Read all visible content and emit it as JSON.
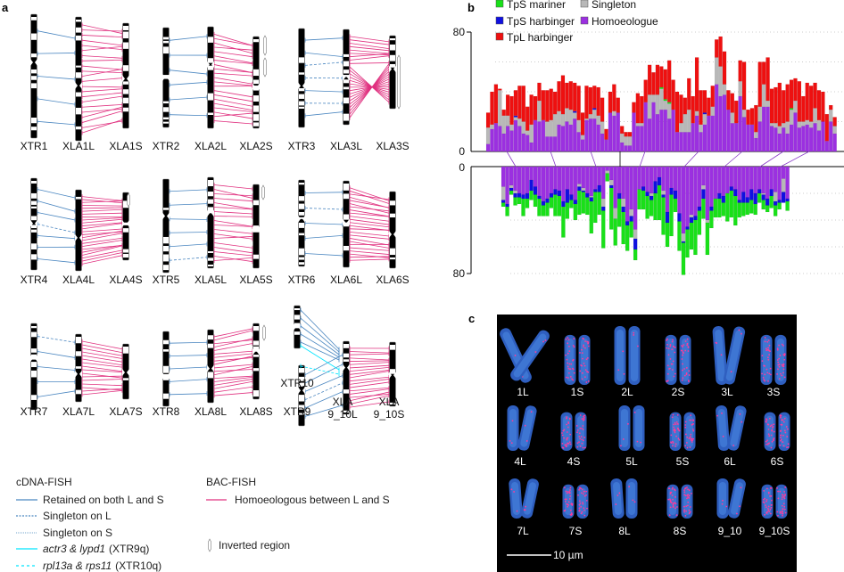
{
  "panel_a": {
    "label": "a",
    "rows": [
      [
        [
          "XTR1",
          "XLA1L",
          "XLA1S"
        ],
        [
          "XTR2",
          "XLA2L",
          "XLA2S"
        ],
        [
          "XTR3",
          "XLA3L",
          "XLA3S"
        ]
      ],
      [
        [
          "XTR4",
          "XLA4L",
          "XLA4S"
        ],
        [
          "XTR5",
          "XLA5L",
          "XLA5S"
        ],
        [
          "XTR6",
          "XLA6L",
          "XLA6S"
        ]
      ],
      [
        [
          "XTR7",
          "XLA7L",
          "XLA7S"
        ],
        [
          "XTR8",
          "XLA8L",
          "XLA8S"
        ],
        [
          "XTR9",
          "XLA 9_10L",
          "XLA 9_10S"
        ]
      ]
    ],
    "extra_label": "XTR10",
    "xla910l": [
      "XLA",
      "9_10L"
    ],
    "xla910s": [
      "XLA",
      "9_10S"
    ],
    "colors": {
      "retained": "#4a86c0",
      "homoeologous": "#e0307f",
      "xtr9q": "#00e5ff"
    },
    "legend": {
      "cdna_title": "cDNA-FISH",
      "retained": "Retained on both L and S",
      "singleton_l": "Singleton on L",
      "singleton_s": "Singleton on S",
      "xtr9q_genes": "actr3 & lypd1",
      "xtr9q_tag": "(XTR9q)",
      "xtr10q_genes": "rpl13a & rps11",
      "xtr10q_tag": "(XTR10q)",
      "bac_title": "BAC-FISH",
      "homoeologous": "Homoeologous between L and S",
      "inverted": "Inverted region"
    }
  },
  "chart_data": {
    "label": "b",
    "type": "bar",
    "stacked": true,
    "legend": [
      {
        "name": "TpS mariner",
        "color": "#19e019"
      },
      {
        "name": "Singleton",
        "color": "#b8b8b8"
      },
      {
        "name": "TpS harbinger",
        "color": "#1010e0"
      },
      {
        "name": "Homoeologue",
        "color": "#9b30e0"
      },
      {
        "name": "TpL harbinger",
        "color": "#ee1010"
      }
    ],
    "legend_placement": "top-left",
    "grid": true,
    "stack_order": [
      "Homoeologue",
      "Singleton",
      "TpS harbinger",
      "TpS mariner",
      "TpL harbinger"
    ],
    "top": {
      "ylim": [
        0,
        80
      ],
      "ticks": [
        "0",
        "80"
      ],
      "direction": "up",
      "bars": [
        [
          5,
          11,
          0,
          0,
          10
        ],
        [
          15,
          3,
          0,
          0,
          22
        ],
        [
          19,
          0,
          0,
          0,
          26
        ],
        [
          17,
          24,
          0,
          0,
          1
        ],
        [
          12,
          12,
          0,
          0,
          4
        ],
        [
          17,
          7,
          0,
          0,
          14
        ],
        [
          14,
          4,
          0,
          0,
          19
        ],
        [
          21,
          2,
          1,
          0,
          17
        ],
        [
          17,
          5,
          0,
          0,
          22
        ],
        [
          12,
          8,
          0,
          0,
          24
        ],
        [
          11,
          3,
          0,
          0,
          16
        ],
        [
          6,
          12,
          0,
          0,
          20
        ],
        [
          21,
          0,
          0,
          0,
          16
        ],
        [
          20,
          14,
          0,
          0,
          12
        ],
        [
          21,
          0,
          0,
          0,
          20
        ],
        [
          10,
          10,
          0,
          0,
          21
        ],
        [
          10,
          11,
          0,
          0,
          21
        ],
        [
          10,
          15,
          0,
          0,
          15
        ],
        [
          18,
          9,
          0,
          0,
          20
        ],
        [
          17,
          8,
          0,
          0,
          26
        ],
        [
          20,
          9,
          0,
          0,
          17
        ],
        [
          18,
          10,
          0,
          0,
          19
        ],
        [
          22,
          4,
          1,
          0,
          19
        ],
        [
          13,
          8,
          0,
          0,
          23
        ],
        [
          8,
          3,
          0,
          0,
          15
        ],
        [
          21,
          1,
          0,
          0,
          22
        ],
        [
          22,
          3,
          0,
          0,
          18
        ],
        [
          22,
          6,
          1,
          0,
          15
        ],
        [
          18,
          6,
          0,
          0,
          19
        ],
        [
          12,
          8,
          0,
          0,
          16
        ],
        [
          8,
          0,
          0,
          0,
          7
        ],
        [
          26,
          0,
          0,
          0,
          14
        ],
        [
          24,
          3,
          0,
          0,
          18
        ],
        [
          26,
          0,
          0,
          0,
          10
        ],
        [
          6,
          6,
          0,
          0,
          5
        ],
        [
          4,
          6,
          0,
          0,
          3
        ],
        [
          4,
          6,
          0,
          0,
          3
        ],
        [
          26,
          0,
          0,
          0,
          7
        ],
        [
          17,
          2,
          0,
          0,
          20
        ],
        [
          17,
          2,
          0,
          0,
          18
        ],
        [
          33,
          0,
          0,
          0,
          15
        ],
        [
          22,
          16,
          0,
          0,
          20
        ],
        [
          33,
          5,
          0,
          0,
          15
        ],
        [
          25,
          13,
          0,
          0,
          20
        ],
        [
          28,
          14,
          0,
          1,
          14
        ],
        [
          28,
          6,
          0,
          1,
          20
        ],
        [
          22,
          10,
          0,
          1,
          28
        ],
        [
          28,
          0,
          0,
          0,
          20
        ],
        [
          13,
          0,
          0,
          0,
          27
        ],
        [
          13,
          6,
          0,
          0,
          19
        ],
        [
          13,
          12,
          0,
          0,
          11
        ],
        [
          13,
          15,
          0,
          0,
          21
        ],
        [
          19,
          0,
          0,
          0,
          18
        ],
        [
          24,
          3,
          0,
          0,
          36
        ],
        [
          13,
          5,
          0,
          0,
          23
        ],
        [
          18,
          7,
          1,
          0,
          15
        ],
        [
          24,
          0,
          0,
          0,
          12
        ],
        [
          24,
          6,
          0,
          0,
          14
        ],
        [
          45,
          18,
          0,
          0,
          12
        ],
        [
          37,
          20,
          0,
          0,
          20
        ],
        [
          38,
          7,
          0,
          0,
          22
        ],
        [
          28,
          0,
          0,
          0,
          13
        ],
        [
          19,
          7,
          0,
          0,
          13
        ],
        [
          19,
          0,
          0,
          0,
          15
        ],
        [
          37,
          10,
          0,
          0,
          14
        ],
        [
          23,
          5,
          0,
          0,
          32
        ],
        [
          18,
          0,
          0,
          0,
          10
        ],
        [
          18,
          0,
          0,
          0,
          11
        ],
        [
          9,
          4,
          0,
          0,
          18
        ],
        [
          20,
          10,
          0,
          0,
          30
        ],
        [
          30,
          15,
          0,
          0,
          15
        ],
        [
          30,
          4,
          0,
          0,
          29
        ],
        [
          17,
          2,
          0,
          0,
          23
        ],
        [
          16,
          3,
          0,
          0,
          24
        ],
        [
          12,
          5,
          0,
          0,
          29
        ],
        [
          16,
          3,
          0,
          0,
          22
        ],
        [
          12,
          8,
          0,
          0,
          25
        ],
        [
          18,
          10,
          0,
          1,
          19
        ],
        [
          26,
          8,
          0,
          0,
          15
        ],
        [
          16,
          4,
          0,
          0,
          27
        ],
        [
          17,
          3,
          0,
          0,
          17
        ],
        [
          18,
          3,
          0,
          0,
          25
        ],
        [
          16,
          4,
          0,
          0,
          24
        ],
        [
          19,
          10,
          0,
          0,
          17
        ],
        [
          14,
          7,
          0,
          0,
          20
        ],
        [
          20,
          0,
          0,
          0,
          20
        ],
        [
          7,
          0,
          0,
          0,
          18
        ],
        [
          20,
          8,
          0,
          0,
          3
        ],
        [
          12,
          5,
          0,
          0,
          6
        ]
      ]
    },
    "bottom": {
      "ylim": [
        0,
        80
      ],
      "ticks": [
        "0",
        "80"
      ],
      "direction": "down",
      "bars": [
        [
          15,
          10,
          2,
          3,
          0
        ],
        [
          28,
          0,
          2,
          7,
          0
        ],
        [
          14,
          2,
          2,
          3,
          0
        ],
        [
          18,
          2,
          3,
          6,
          0
        ],
        [
          20,
          0,
          3,
          5,
          0
        ],
        [
          21,
          0,
          3,
          13,
          0
        ],
        [
          20,
          0,
          4,
          7,
          0
        ],
        [
          10,
          0,
          8,
          7,
          0
        ],
        [
          15,
          0,
          6,
          9,
          0
        ],
        [
          22,
          0,
          2,
          13,
          0
        ],
        [
          26,
          0,
          3,
          8,
          0
        ],
        [
          24,
          0,
          3,
          10,
          0
        ],
        [
          20,
          0,
          3,
          8,
          0
        ],
        [
          17,
          0,
          4,
          16,
          0
        ],
        [
          18,
          0,
          4,
          15,
          0
        ],
        [
          26,
          0,
          4,
          23,
          0
        ],
        [
          17,
          0,
          10,
          12,
          0
        ],
        [
          21,
          0,
          4,
          6,
          0
        ],
        [
          25,
          0,
          3,
          12,
          0
        ],
        [
          13,
          2,
          3,
          18,
          0
        ],
        [
          16,
          2,
          1,
          16,
          0
        ],
        [
          20,
          0,
          3,
          13,
          0
        ],
        [
          22,
          1,
          3,
          24,
          0
        ],
        [
          17,
          0,
          2,
          23,
          0
        ],
        [
          14,
          0,
          5,
          17,
          0
        ],
        [
          24,
          6,
          3,
          28,
          0
        ],
        [
          3,
          2,
          0,
          6,
          0
        ],
        [
          10,
          4,
          2,
          31,
          0
        ],
        [
          31,
          8,
          0,
          20,
          0
        ],
        [
          20,
          0,
          4,
          21,
          0
        ],
        [
          24,
          6,
          4,
          24,
          0
        ],
        [
          41,
          0,
          3,
          19,
          0
        ],
        [
          32,
          5,
          4,
          12,
          0
        ],
        [
          47,
          7,
          8,
          8,
          0
        ],
        [
          17,
          0,
          0,
          15,
          0
        ],
        [
          15,
          0,
          3,
          14,
          0
        ],
        [
          19,
          0,
          3,
          17,
          0
        ],
        [
          20,
          2,
          3,
          12,
          0
        ],
        [
          11,
          0,
          9,
          20,
          0
        ],
        [
          8,
          0,
          6,
          26,
          0
        ],
        [
          18,
          3,
          2,
          28,
          0
        ],
        [
          34,
          0,
          8,
          18,
          0
        ],
        [
          16,
          0,
          5,
          31,
          0
        ],
        [
          18,
          0,
          6,
          10,
          0
        ],
        [
          35,
          0,
          6,
          22,
          0
        ],
        [
          50,
          6,
          1,
          24,
          0
        ],
        [
          45,
          0,
          2,
          21,
          0
        ],
        [
          36,
          2,
          4,
          20,
          0
        ],
        [
          37,
          0,
          3,
          26,
          0
        ],
        [
          30,
          0,
          3,
          18,
          0
        ],
        [
          14,
          3,
          7,
          15,
          0
        ],
        [
          40,
          2,
          0,
          24,
          0
        ],
        [
          30,
          0,
          3,
          13,
          0
        ],
        [
          24,
          0,
          0,
          14,
          0
        ],
        [
          20,
          0,
          4,
          14,
          0
        ],
        [
          22,
          0,
          5,
          10,
          0
        ],
        [
          20,
          0,
          0,
          21,
          0
        ],
        [
          15,
          0,
          3,
          20,
          0
        ],
        [
          17,
          0,
          5,
          22,
          0
        ],
        [
          25,
          0,
          2,
          11,
          0
        ],
        [
          19,
          0,
          8,
          10,
          0
        ],
        [
          23,
          0,
          4,
          9,
          0
        ],
        [
          17,
          0,
          8,
          10,
          0
        ],
        [
          20,
          0,
          8,
          8,
          0
        ],
        [
          17,
          0,
          3,
          7,
          0
        ],
        [
          20,
          1,
          4,
          7,
          0
        ],
        [
          24,
          0,
          5,
          5,
          0
        ],
        [
          17,
          0,
          5,
          9,
          0
        ],
        [
          19,
          7,
          3,
          8,
          0
        ],
        [
          25,
          0,
          2,
          5,
          0
        ],
        [
          9,
          10,
          8,
          0,
          0
        ],
        [
          24,
          0,
          2,
          7,
          0
        ]
      ]
    }
  },
  "panel_c": {
    "label": "c",
    "rows": [
      [
        "1L",
        "1S",
        "2L",
        "2S",
        "3L",
        "3S"
      ],
      [
        "4L",
        "4S",
        "5L",
        "5S",
        "6L",
        "6S"
      ],
      [
        "7L",
        "7S",
        "8L",
        "8S",
        "9_10",
        "9_10S"
      ]
    ],
    "scale_bar": "10 µm"
  }
}
